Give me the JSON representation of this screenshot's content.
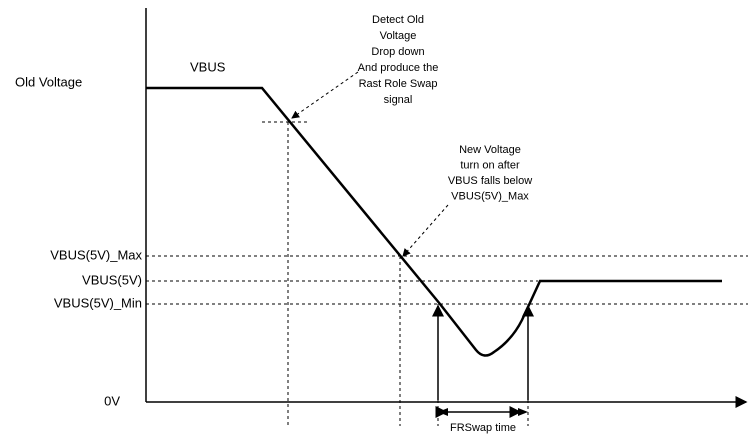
{
  "labels": {
    "old_voltage": "Old Voltage",
    "vbus": "VBUS",
    "vbus_max": "VBUS(5V)_Max",
    "vbus_5v": "VBUS(5V)",
    "vbus_min": "VBUS(5V)_Min",
    "zero": "0V",
    "frswap": "FRSwap time"
  },
  "annotations": [
    {
      "lines": [
        "Detect Old",
        "Voltage",
        "Drop down",
        "And  produce the",
        "Rast Role Swap",
        "signal"
      ]
    },
    {
      "lines": [
        "New Voltage",
        "turn on after",
        "VBUS falls below",
        "VBUS(5V)_Max"
      ]
    }
  ]
}
